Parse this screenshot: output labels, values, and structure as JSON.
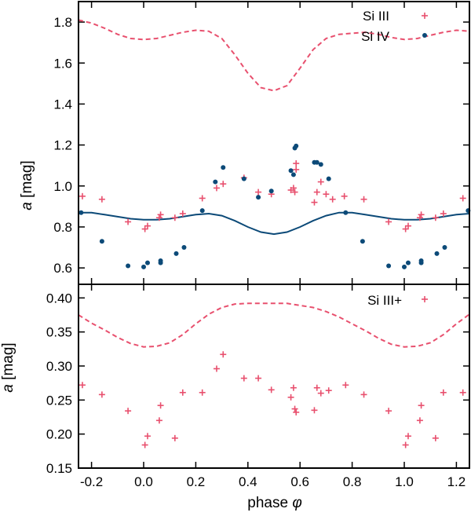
{
  "chart_data": [
    {
      "type": "scatter",
      "panel": "top",
      "ylabel_italic": "a",
      "ylabel_rest": " [mag]",
      "xlabel": "",
      "xlim": [
        -0.25,
        1.25
      ],
      "ylim": [
        0.52,
        1.9
      ],
      "yticks": [
        0.6,
        0.8,
        1.0,
        1.2,
        1.4,
        1.6,
        1.8
      ],
      "ytick_labels": [
        "0.6",
        "0.8",
        "1.0",
        "1.2",
        "1.4",
        "1.6",
        "1.8"
      ],
      "legend_position": "top-right",
      "series": [
        {
          "name": "Si III",
          "marker": "plus",
          "color": "#e8506e",
          "points": [
            [
              -0.235,
              0.95
            ],
            [
              -0.16,
              0.935
            ],
            [
              -0.06,
              0.825
            ],
            [
              0.005,
              0.79
            ],
            [
              0.015,
              0.805
            ],
            [
              0.065,
              0.86
            ],
            [
              0.06,
              0.845
            ],
            [
              0.12,
              0.845
            ],
            [
              0.15,
              0.865
            ],
            [
              0.225,
              0.94
            ],
            [
              0.28,
              0.99
            ],
            [
              0.305,
              1.01
            ],
            [
              0.385,
              1.04
            ],
            [
              0.44,
              0.97
            ],
            [
              0.49,
              0.96
            ],
            [
              0.565,
              0.98
            ],
            [
              0.575,
              0.99
            ],
            [
              0.58,
              0.97
            ],
            [
              0.585,
              1.08
            ],
            [
              0.585,
              1.11
            ],
            [
              0.655,
              0.92
            ],
            [
              0.665,
              0.97
            ],
            [
              0.68,
              1.02
            ],
            [
              0.7,
              0.96
            ],
            [
              0.725,
              0.935
            ],
            [
              0.77,
              0.95
            ],
            [
              0.845,
              0.935
            ],
            [
              0.94,
              0.825
            ],
            [
              1.005,
              0.79
            ],
            [
              1.015,
              0.805
            ],
            [
              1.065,
              0.86
            ],
            [
              1.06,
              0.845
            ],
            [
              1.12,
              0.845
            ],
            [
              1.15,
              0.865
            ],
            [
              1.225,
              0.94
            ]
          ]
        },
        {
          "name": "Si IV",
          "marker": "dot",
          "color": "#0c4a78",
          "points": [
            [
              -0.24,
              0.87
            ],
            [
              -0.16,
              0.73
            ],
            [
              -0.06,
              0.61
            ],
            [
              0.0,
              0.605
            ],
            [
              0.015,
              0.625
            ],
            [
              0.065,
              0.635
            ],
            [
              0.065,
              0.625
            ],
            [
              0.125,
              0.67
            ],
            [
              0.155,
              0.7
            ],
            [
              0.225,
              0.88
            ],
            [
              0.275,
              1.02
            ],
            [
              0.305,
              1.09
            ],
            [
              0.385,
              1.035
            ],
            [
              0.44,
              0.945
            ],
            [
              0.49,
              0.975
            ],
            [
              0.565,
              1.075
            ],
            [
              0.575,
              1.055
            ],
            [
              0.58,
              1.185
            ],
            [
              0.585,
              1.195
            ],
            [
              0.655,
              1.115
            ],
            [
              0.665,
              1.115
            ],
            [
              0.68,
              1.105
            ],
            [
              0.71,
              1.035
            ],
            [
              0.775,
              0.87
            ],
            [
              0.84,
              0.73
            ],
            [
              0.94,
              0.61
            ],
            [
              1.0,
              0.605
            ],
            [
              1.015,
              0.625
            ],
            [
              1.065,
              0.635
            ],
            [
              1.065,
              0.625
            ],
            [
              1.125,
              0.67
            ],
            [
              1.155,
              0.7
            ],
            [
              1.245,
              0.88
            ]
          ]
        }
      ],
      "curves": [
        {
          "name": "Si III model",
          "style": "dashed",
          "color": "#e8506e",
          "points": [
            [
              -0.25,
              1.81
            ],
            [
              -0.2,
              1.795
            ],
            [
              -0.15,
              1.77
            ],
            [
              -0.1,
              1.74
            ],
            [
              -0.05,
              1.72
            ],
            [
              0.0,
              1.715
            ],
            [
              0.05,
              1.72
            ],
            [
              0.1,
              1.735
            ],
            [
              0.15,
              1.75
            ],
            [
              0.2,
              1.76
            ],
            [
              0.25,
              1.755
            ],
            [
              0.3,
              1.72
            ],
            [
              0.35,
              1.64
            ],
            [
              0.4,
              1.55
            ],
            [
              0.45,
              1.48
            ],
            [
              0.5,
              1.465
            ],
            [
              0.55,
              1.49
            ],
            [
              0.6,
              1.575
            ],
            [
              0.65,
              1.665
            ],
            [
              0.7,
              1.72
            ],
            [
              0.75,
              1.74
            ],
            [
              0.8,
              1.745
            ],
            [
              0.85,
              1.75
            ],
            [
              0.9,
              1.74
            ],
            [
              0.95,
              1.725
            ],
            [
              1.0,
              1.715
            ],
            [
              1.05,
              1.72
            ],
            [
              1.1,
              1.735
            ],
            [
              1.15,
              1.75
            ],
            [
              1.2,
              1.76
            ],
            [
              1.25,
              1.755
            ]
          ]
        },
        {
          "name": "Si IV model",
          "style": "solid",
          "color": "#0c4a78",
          "points": [
            [
              -0.25,
              0.87
            ],
            [
              -0.2,
              0.87
            ],
            [
              -0.15,
              0.86
            ],
            [
              -0.1,
              0.85
            ],
            [
              -0.05,
              0.84
            ],
            [
              0.0,
              0.835
            ],
            [
              0.05,
              0.835
            ],
            [
              0.1,
              0.84
            ],
            [
              0.15,
              0.85
            ],
            [
              0.2,
              0.86
            ],
            [
              0.25,
              0.865
            ],
            [
              0.3,
              0.855
            ],
            [
              0.35,
              0.83
            ],
            [
              0.4,
              0.8
            ],
            [
              0.45,
              0.775
            ],
            [
              0.5,
              0.765
            ],
            [
              0.55,
              0.775
            ],
            [
              0.6,
              0.8
            ],
            [
              0.65,
              0.83
            ],
            [
              0.7,
              0.855
            ],
            [
              0.75,
              0.87
            ],
            [
              0.8,
              0.87
            ],
            [
              0.85,
              0.86
            ],
            [
              0.9,
              0.85
            ],
            [
              0.95,
              0.84
            ],
            [
              1.0,
              0.835
            ],
            [
              1.05,
              0.835
            ],
            [
              1.1,
              0.84
            ],
            [
              1.15,
              0.85
            ],
            [
              1.2,
              0.86
            ],
            [
              1.25,
              0.865
            ]
          ]
        }
      ]
    },
    {
      "type": "scatter",
      "panel": "bottom",
      "ylabel_italic": "a",
      "ylabel_rest": " [mag]",
      "xlabel_text": "phase ",
      "xlabel_symbol": "φ",
      "xlim": [
        -0.25,
        1.25
      ],
      "ylim": [
        0.15,
        0.42
      ],
      "xticks": [
        -0.2,
        0.0,
        0.2,
        0.4,
        0.6,
        0.8,
        1.0,
        1.2
      ],
      "xtick_labels": [
        "-0.2",
        "0.0",
        "0.2",
        "0.4",
        "0.6",
        "0.8",
        "1.0",
        "1.2"
      ],
      "yticks": [
        0.15,
        0.2,
        0.25,
        0.3,
        0.35,
        0.4
      ],
      "ytick_labels": [
        "0.15",
        "0.20",
        "0.25",
        "0.30",
        "0.35",
        "0.40"
      ],
      "legend_position": "top-right",
      "series": [
        {
          "name": "Si III+",
          "marker": "plus",
          "color": "#e8506e",
          "points": [
            [
              -0.235,
              0.272
            ],
            [
              -0.16,
              0.258
            ],
            [
              -0.06,
              0.234
            ],
            [
              0.005,
              0.184
            ],
            [
              0.015,
              0.197
            ],
            [
              0.065,
              0.242
            ],
            [
              0.06,
              0.22
            ],
            [
              0.12,
              0.194
            ],
            [
              0.15,
              0.261
            ],
            [
              0.225,
              0.261
            ],
            [
              0.28,
              0.296
            ],
            [
              0.305,
              0.317
            ],
            [
              0.385,
              0.282
            ],
            [
              0.44,
              0.282
            ],
            [
              0.49,
              0.265
            ],
            [
              0.565,
              0.254
            ],
            [
              0.575,
              0.268
            ],
            [
              0.58,
              0.237
            ],
            [
              0.585,
              0.232
            ],
            [
              0.655,
              0.235
            ],
            [
              0.665,
              0.268
            ],
            [
              0.68,
              0.26
            ],
            [
              0.71,
              0.264
            ],
            [
              0.775,
              0.272
            ],
            [
              0.845,
              0.258
            ],
            [
              0.94,
              0.234
            ],
            [
              1.005,
              0.184
            ],
            [
              1.015,
              0.197
            ],
            [
              1.065,
              0.242
            ],
            [
              1.06,
              0.22
            ],
            [
              1.12,
              0.194
            ],
            [
              1.15,
              0.261
            ],
            [
              1.225,
              0.261
            ]
          ]
        }
      ],
      "curves": [
        {
          "name": "Si III+ model",
          "style": "dashed",
          "color": "#e8506e",
          "points": [
            [
              -0.25,
              0.375
            ],
            [
              -0.2,
              0.363
            ],
            [
              -0.15,
              0.353
            ],
            [
              -0.1,
              0.342
            ],
            [
              -0.05,
              0.333
            ],
            [
              0.0,
              0.328
            ],
            [
              0.05,
              0.329
            ],
            [
              0.1,
              0.334
            ],
            [
              0.15,
              0.346
            ],
            [
              0.2,
              0.362
            ],
            [
              0.25,
              0.376
            ],
            [
              0.3,
              0.386
            ],
            [
              0.35,
              0.391
            ],
            [
              0.4,
              0.392
            ],
            [
              0.45,
              0.392
            ],
            [
              0.5,
              0.392
            ],
            [
              0.55,
              0.392
            ],
            [
              0.6,
              0.389
            ],
            [
              0.65,
              0.386
            ],
            [
              0.7,
              0.38
            ],
            [
              0.75,
              0.372
            ],
            [
              0.8,
              0.362
            ],
            [
              0.85,
              0.352
            ],
            [
              0.9,
              0.341
            ],
            [
              0.95,
              0.332
            ],
            [
              1.0,
              0.328
            ],
            [
              1.05,
              0.329
            ],
            [
              1.1,
              0.334
            ],
            [
              1.15,
              0.346
            ],
            [
              1.2,
              0.362
            ],
            [
              1.25,
              0.376
            ]
          ]
        }
      ]
    }
  ]
}
